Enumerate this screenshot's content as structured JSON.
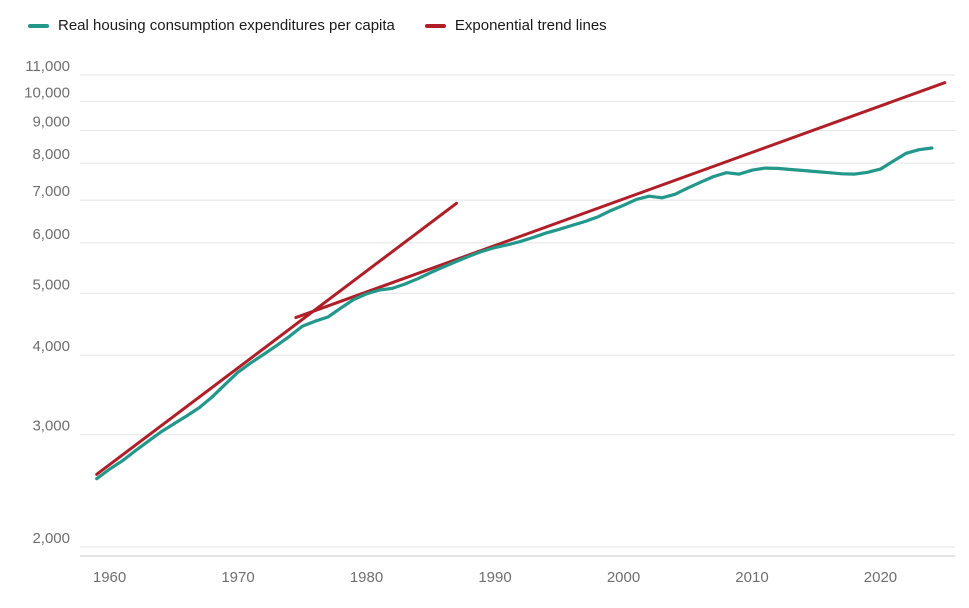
{
  "chart_data": {
    "type": "line",
    "title": "",
    "y_scale": "log",
    "grid": "horizontal",
    "legend_position": "top-left",
    "xlim": [
      1957.7,
      2025.8
    ],
    "ylim": [
      2000,
      11000
    ],
    "x_tick_values": [
      1960,
      1970,
      1980,
      1990,
      2000,
      2010,
      2020
    ],
    "x_tick_labels": [
      "1960",
      "1970",
      "1980",
      "1990",
      "2000",
      "2010",
      "2020"
    ],
    "y_tick_values": [
      2000,
      3000,
      4000,
      5000,
      6000,
      7000,
      8000,
      9000,
      10000,
      11000
    ],
    "y_tick_labels": [
      "2,000",
      "3,000",
      "4,000",
      "5,000",
      "6,000",
      "7,000",
      "8,000",
      "9,000",
      "10,000",
      "11,000"
    ],
    "legend": [
      {
        "label": "Real housing consumption expenditures per capita",
        "color": "#23978a"
      },
      {
        "label": "Exponential trend lines",
        "color": "#b01e28"
      }
    ],
    "series": [
      {
        "name": "Real housing consumption expenditures per capita",
        "color": "#23978a",
        "x": [
          1959,
          1960,
          1961,
          1962,
          1963,
          1964,
          1965,
          1966,
          1967,
          1968,
          1969,
          1970,
          1971,
          1972,
          1973,
          1974,
          1975,
          1976,
          1977,
          1978,
          1979,
          1980,
          1981,
          1982,
          1983,
          1984,
          1985,
          1986,
          1987,
          1988,
          1989,
          1990,
          1991,
          1992,
          1993,
          1994,
          1995,
          1996,
          1997,
          1998,
          1999,
          2000,
          2001,
          2002,
          2003,
          2004,
          2005,
          2006,
          2007,
          2008,
          2009,
          2010,
          2011,
          2012,
          2013,
          2014,
          2015,
          2016,
          2017,
          2018,
          2019,
          2020,
          2021,
          2022,
          2023,
          2024
        ],
        "values": [
          2560,
          2650,
          2730,
          2830,
          2930,
          3030,
          3120,
          3210,
          3310,
          3440,
          3600,
          3760,
          3890,
          4010,
          4140,
          4280,
          4440,
          4520,
          4590,
          4740,
          4890,
          4990,
          5060,
          5090,
          5170,
          5270,
          5390,
          5500,
          5610,
          5720,
          5820,
          5900,
          5960,
          6030,
          6120,
          6220,
          6300,
          6390,
          6480,
          6590,
          6740,
          6870,
          7020,
          7100,
          7060,
          7150,
          7310,
          7470,
          7620,
          7730,
          7690,
          7800,
          7860,
          7850,
          7820,
          7790,
          7760,
          7730,
          7700,
          7690,
          7740,
          7830,
          8060,
          8290,
          8400,
          8450
        ]
      }
    ],
    "trend_lines": [
      {
        "name": "Exponential trend line 1959-1987",
        "color": "#b01e28",
        "x": [
          1959,
          1987
        ],
        "values": [
          2600,
          6920
        ]
      },
      {
        "name": "Exponential trend line 1975-2025",
        "color": "#b01e28",
        "x": [
          1974.5,
          2025
        ],
        "values": [
          4580,
          10700
        ]
      }
    ],
    "colors": {
      "grid": "#e4e4e4",
      "axis": "#c9c9c9",
      "tick_text": "#6f6f6f",
      "legend_text": "#1a1a1a",
      "background": "#ffffff"
    }
  }
}
